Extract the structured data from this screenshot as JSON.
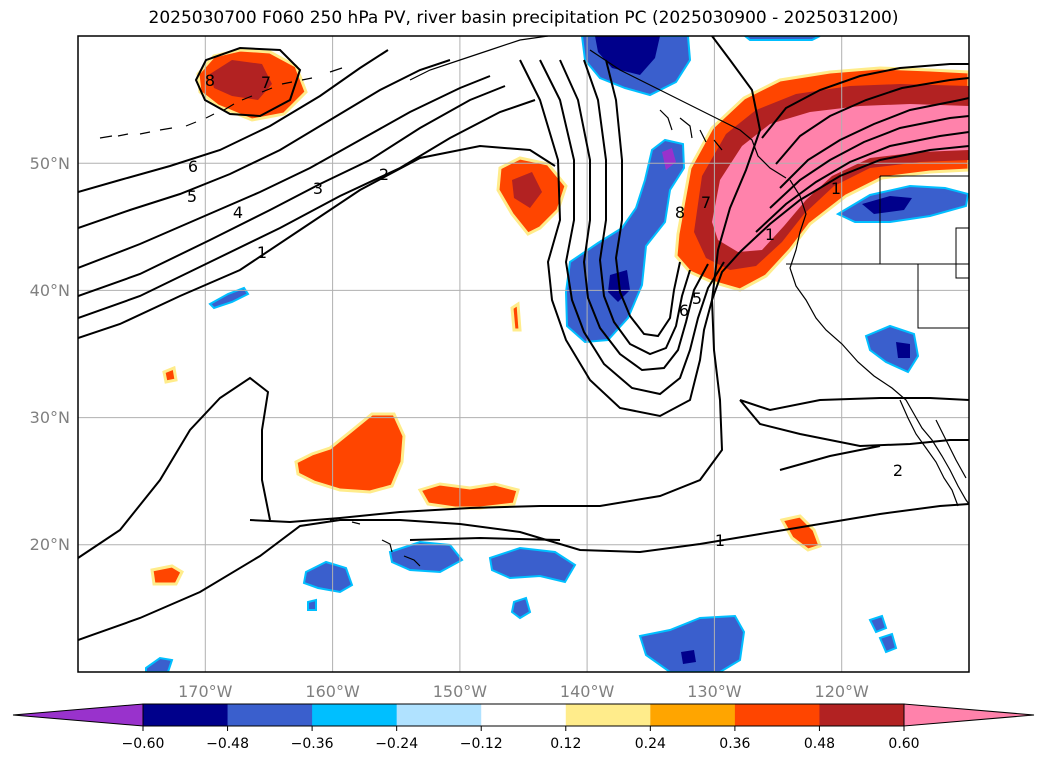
{
  "title": "2025030700 F060 250 hPa PV, river basin precipitation PC (2025030900 - 2025031200)",
  "map": {
    "projection": "PlateCarree",
    "lon_range": [
      -180,
      -110
    ],
    "lat_range": [
      10,
      60
    ],
    "lat_labels": [
      "20°N",
      "30°N",
      "40°N",
      "50°N"
    ],
    "lon_labels": [
      "170°W",
      "160°W",
      "150°W",
      "140°W",
      "130°W",
      "120°W"
    ],
    "gridlines": true,
    "coastlines": true
  },
  "pv_contours": {
    "units": "PVU",
    "levels": [
      1,
      2,
      3,
      4,
      5,
      6,
      7,
      8
    ],
    "labels": [
      "8",
      "7",
      "6",
      "5",
      "4",
      "3",
      "2",
      "1",
      "6",
      "5",
      "8",
      "7",
      "1",
      "1",
      "2",
      "1"
    ],
    "color": "#000000"
  },
  "colorbar": {
    "tick_labels": [
      "−0.60",
      "−0.48",
      "−0.36",
      "−0.24",
      "−0.12",
      "0.12",
      "0.24",
      "0.36",
      "0.48",
      "0.60"
    ],
    "colors": [
      "#9932cc",
      "#00008b",
      "#3a5fcd",
      "#00bfff",
      "#b0e2ff",
      "#ffffff",
      "#ffec8b",
      "#ffa500",
      "#ff4500",
      "#b22222",
      "#ff82ab"
    ],
    "extend": "both"
  }
}
